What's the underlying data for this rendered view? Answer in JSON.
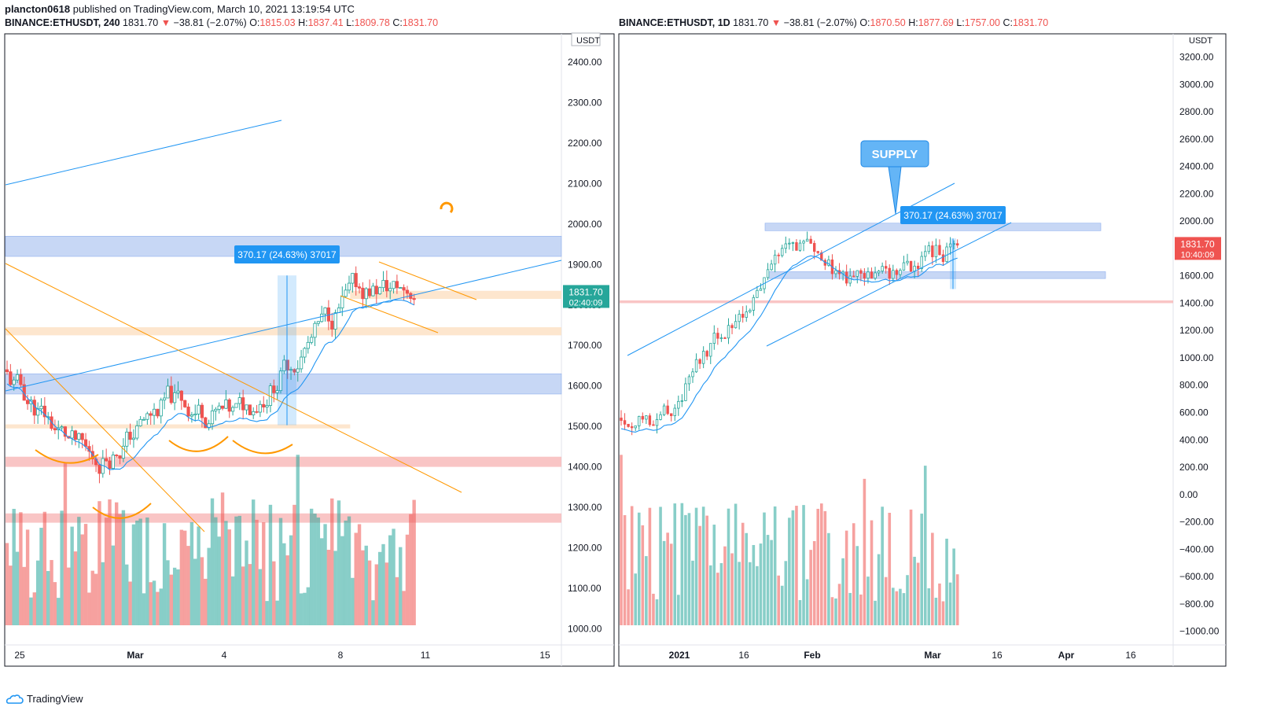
{
  "header": {
    "author": "plancton0618",
    "published_text": "published on TradingView.com, March 10, 2021 13:19:54 UTC"
  },
  "brand": {
    "name": "TradingView"
  },
  "colors": {
    "up": "#26a69a",
    "down": "#ef5350",
    "blue_zone": "#b9cdf3",
    "orange_zone": "#fce0c2",
    "red_zone": "#f8b6b7",
    "line_blue": "#2196f3",
    "line_orange": "#ff9800",
    "price_tag": "#26a69a",
    "price_tag_red": "#ef5350"
  },
  "chart_data": [
    {
      "type": "candlestick",
      "symbol": "BINANCE:ETHUSDT",
      "interval": "240",
      "last": "1831.70",
      "change": "−38.81 (−2.07%)",
      "ohlc": {
        "O": "1815.03",
        "H": "1837.41",
        "L": "1809.78",
        "C": "1831.70"
      },
      "currency": "USDT",
      "y_ticks": [
        "2400.00",
        "2300.00",
        "2200.00",
        "2100.00",
        "2000.00",
        "1900.00",
        "1800.00",
        "1700.00",
        "1600.00",
        "1500.00",
        "1400.00",
        "1300.00",
        "1200.00",
        "1100.00",
        "1000.00"
      ],
      "x_ticks": [
        "25",
        "Mar",
        "4",
        "8",
        "11",
        "15"
      ],
      "ylim": [
        960,
        2470
      ],
      "price_tag": {
        "value": "1831.70",
        "timer": "02:40:09"
      },
      "measure": {
        "label": "370.17 (24.63%) 37017",
        "from": 1503,
        "to": 1873
      },
      "zones": [
        {
          "kind": "blue",
          "from": 1920,
          "to": 1970
        },
        {
          "kind": "orange",
          "from": 1815,
          "to": 1835,
          "start": 0.62
        },
        {
          "kind": "orange",
          "from": 1725,
          "to": 1745
        },
        {
          "kind": "blue",
          "from": 1580,
          "to": 1630
        },
        {
          "kind": "orange",
          "from": 1495,
          "to": 1505,
          "end": 0.62
        },
        {
          "kind": "red",
          "from": 1400,
          "to": 1425
        },
        {
          "kind": "red",
          "from": 1262,
          "to": 1285
        }
      ]
    },
    {
      "type": "candlestick",
      "symbol": "BINANCE:ETHUSDT",
      "interval": "1D",
      "last": "1831.70",
      "change": "−38.81 (−2.07%)",
      "ohlc": {
        "O": "1870.50",
        "H": "1877.69",
        "L": "1757.00",
        "C": "1831.70"
      },
      "currency": "USDT",
      "y_ticks": [
        "3200.00",
        "3000.00",
        "2800.00",
        "2600.00",
        "2400.00",
        "2200.00",
        "2000.00",
        "1800.00",
        "1600.00",
        "1400.00",
        "1200.00",
        "1000.00",
        "800.00",
        "600.00",
        "400.00",
        "200.00",
        "0.00",
        "−200.00",
        "−400.00",
        "−600.00",
        "−800.00",
        "−1000.00"
      ],
      "x_ticks": [
        "2021",
        "16",
        "Feb",
        "Mar",
        "16",
        "Apr",
        "16"
      ],
      "ylim": [
        -1100,
        3370
      ],
      "price_tag": {
        "value": "1831.70",
        "timer": "10:40:09"
      },
      "measure": {
        "label": "370.17 (24.63%) 37017",
        "from": 1503,
        "to": 1873
      },
      "callout": {
        "label": "SUPPLY"
      },
      "zones": [
        {
          "kind": "blue",
          "from": 1930,
          "to": 1985
        },
        {
          "kind": "blue",
          "from": 1580,
          "to": 1630
        },
        {
          "kind": "red",
          "from": 1400,
          "to": 1420
        }
      ]
    }
  ]
}
